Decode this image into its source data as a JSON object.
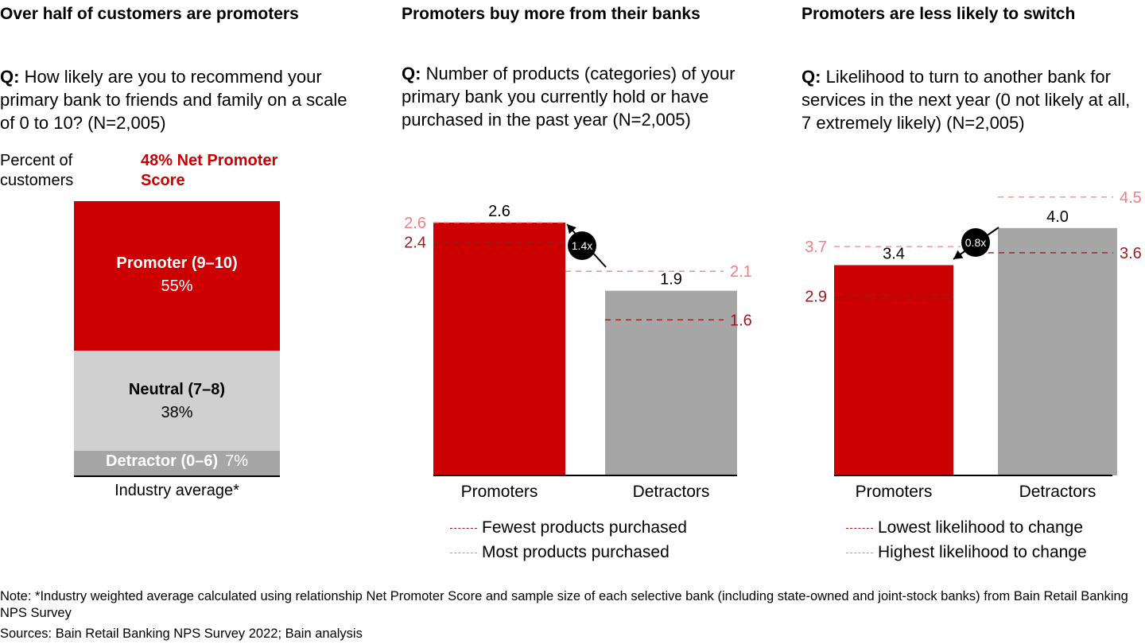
{
  "panel1": {
    "title": "Over half of customers are promoters",
    "question_prefix": "Q:",
    "question": "How likely are you to recommend your primary bank to friends and family on a scale of 0 to 10? (N=2,005)",
    "ylabel": "Percent of customers",
    "nps_label": "48% Net Promoter Score",
    "xlabel": "Industry average*"
  },
  "panel2": {
    "title": "Promoters buy more from their banks",
    "question_prefix": "Q:",
    "question": "Number of products (categories) of your primary bank you currently hold or have purchased in the past year (N=2,005)",
    "multiplier": "1.4x",
    "legend_low": "Fewest products purchased",
    "legend_high": "Most products purchased"
  },
  "panel3": {
    "title": "Promoters are less likely to switch",
    "question_prefix": "Q:",
    "question": "Likelihood to turn to another bank for services in the next year (0 not likely at all, 7 extremely likely) (N=2,005)",
    "multiplier": "0.8x",
    "legend_low": "Lowest likelihood to change",
    "legend_high": "Highest likelihood to change"
  },
  "notes": {
    "note": "Note: *Industry weighted average calculated using relationship Net Promoter Score and sample size of each selective bank (including state-owned and joint-stock banks) from Bain Retail Banking NPS Survey",
    "sources": "Sources: Bain Retail Banking NPS Survey 2022; Bain analysis"
  },
  "colors": {
    "red": "#cc0000",
    "dark_red": "#9b1c1c",
    "light_red": "#f08080",
    "gray": "#a6a6a6",
    "light_gray": "#d0d0d0"
  },
  "chart_data": [
    {
      "type": "bar",
      "stacked": true,
      "categories": [
        "Industry average*"
      ],
      "series": [
        {
          "name": "Promoter (9–10)",
          "value": 55,
          "label": "55%",
          "color": "#cc0000"
        },
        {
          "name": "Neutral (7–8)",
          "value": 38,
          "label": "38%",
          "color": "#d0d0d0"
        },
        {
          "name": "Detractor (0–6)",
          "value": 7,
          "label": "7%",
          "color": "#a6a6a6"
        }
      ],
      "ylim": [
        0,
        100
      ]
    },
    {
      "type": "bar",
      "categories": [
        "Promoters",
        "Detractors"
      ],
      "values": [
        2.6,
        1.9
      ],
      "value_labels": [
        "2.6",
        "1.9"
      ],
      "colors": [
        "#cc0000",
        "#a6a6a6"
      ],
      "ranges": [
        {
          "category": "Promoters",
          "low": 2.4,
          "high": 2.6
        },
        {
          "category": "Detractors",
          "low": 1.6,
          "high": 2.1
        }
      ],
      "ylim": [
        0,
        2.9
      ]
    },
    {
      "type": "bar",
      "categories": [
        "Promoters",
        "Detractors"
      ],
      "values": [
        3.4,
        4.0
      ],
      "value_labels": [
        "3.4",
        "4.0"
      ],
      "colors": [
        "#cc0000",
        "#a6a6a6"
      ],
      "ranges": [
        {
          "category": "Promoters",
          "low": 2.9,
          "high": 3.7
        },
        {
          "category": "Detractors",
          "low": 3.6,
          "high": 4.5
        }
      ],
      "ylim": [
        0,
        4.7
      ]
    }
  ]
}
